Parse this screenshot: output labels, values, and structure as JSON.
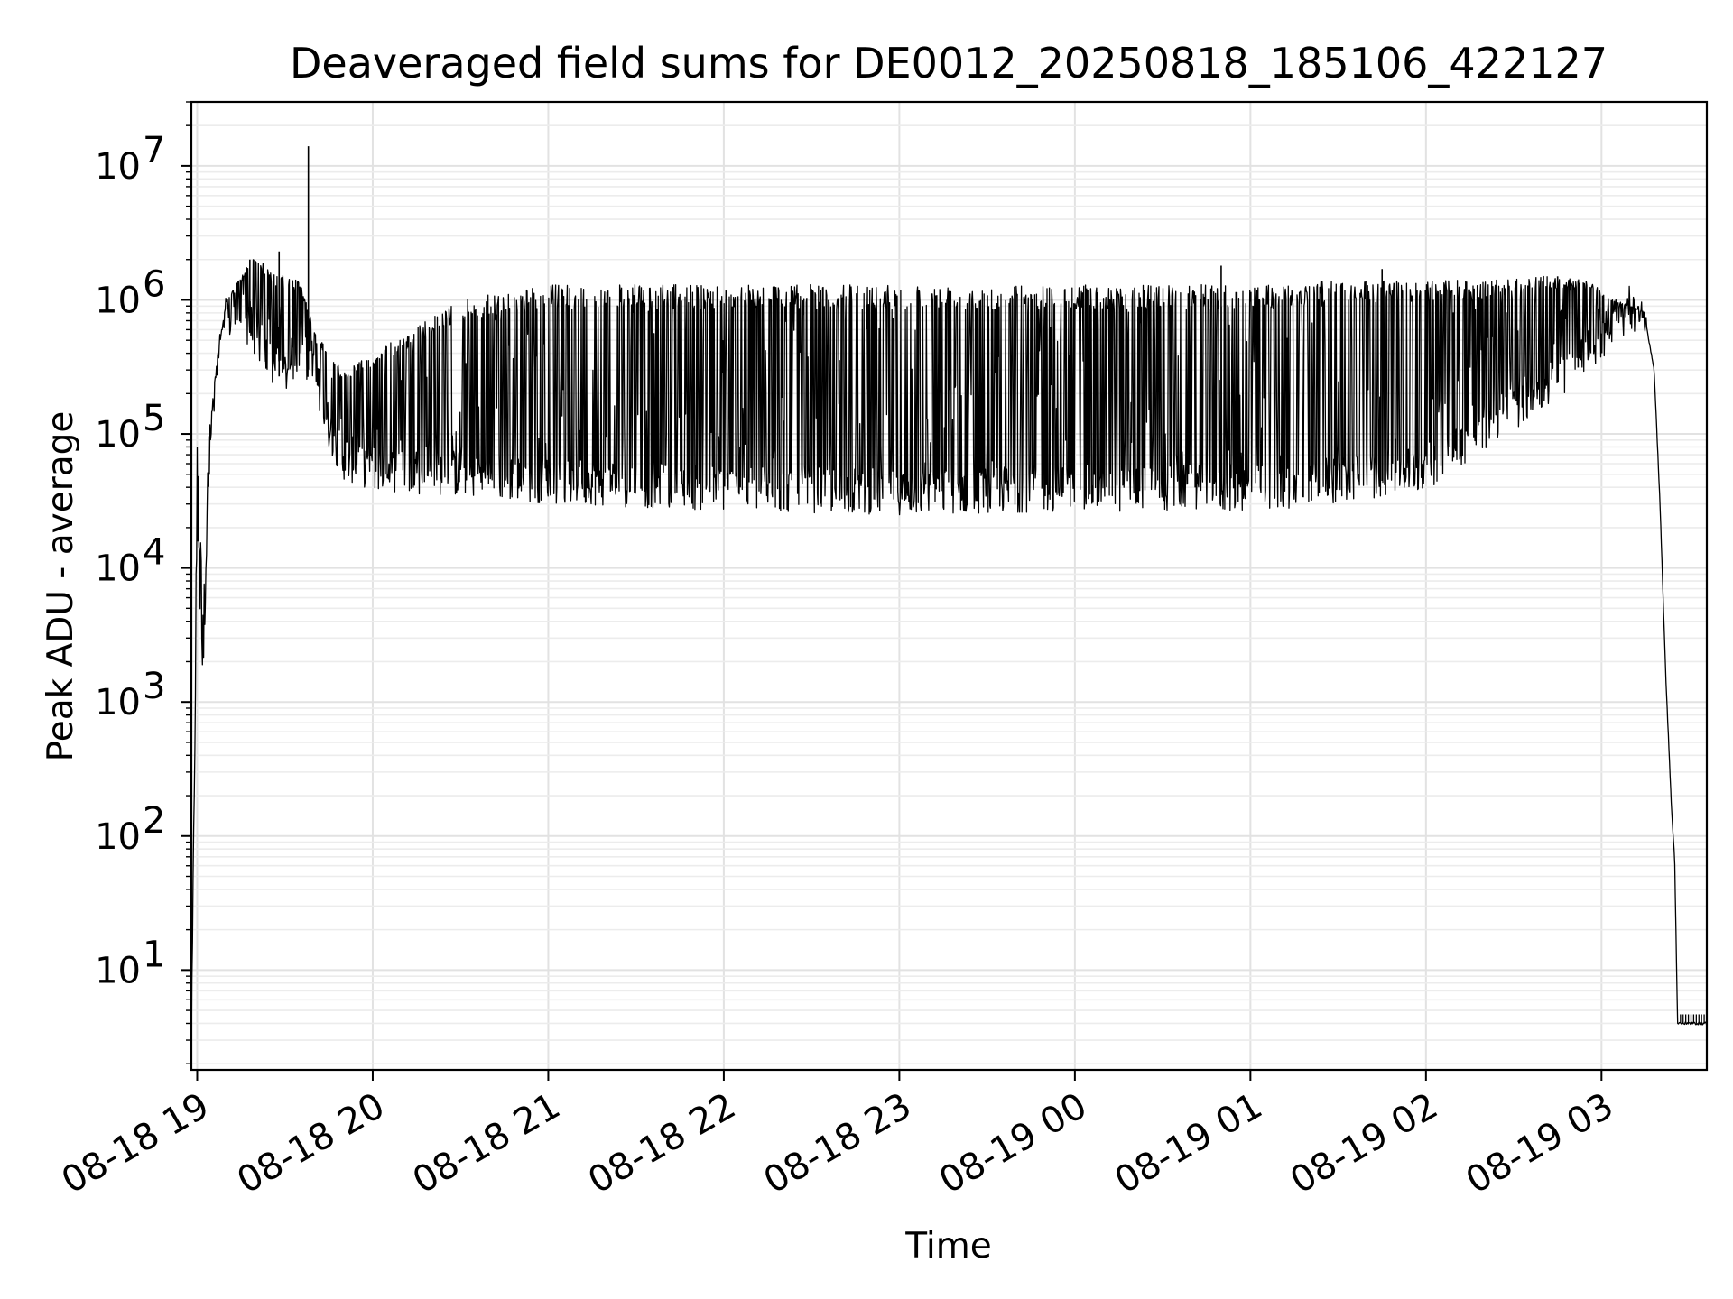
{
  "chart_data": {
    "type": "line",
    "title": "Deaveraged field sums for DE0012_20250818_185106_422127",
    "xlabel": "Time",
    "ylabel": "Peak ADU - average",
    "yscale": "log",
    "ylim": [
      1.8,
      30000000
    ],
    "xlim": [
      "08-18 18:58",
      "08-19 03:36"
    ],
    "grid": true,
    "legend": "none",
    "line_color": "#000000",
    "x_ticks": [
      "08-18 19",
      "08-18 20",
      "08-18 21",
      "08-18 22",
      "08-18 23",
      "08-19 00",
      "08-19 01",
      "08-19 02",
      "08-19 03"
    ],
    "y_ticks": [
      {
        "base": "10",
        "exp": "1",
        "value": 10
      },
      {
        "base": "10",
        "exp": "2",
        "value": 100
      },
      {
        "base": "10",
        "exp": "3",
        "value": 1000
      },
      {
        "base": "10",
        "exp": "4",
        "value": 10000
      },
      {
        "base": "10",
        "exp": "5",
        "value": 100000
      },
      {
        "base": "10",
        "exp": "6",
        "value": 1000000
      },
      {
        "base": "10",
        "exp": "7",
        "value": 10000000
      }
    ],
    "series": [
      {
        "baseline_x": [
          "08-18 18:58",
          "08-18 19:00",
          "08-18 19:02",
          "08-18 19:04",
          "08-18 19:07",
          "08-18 19:10",
          "08-18 19:15",
          "08-18 19:20",
          "08-18 19:25",
          "08-18 19:30",
          "08-18 19:35",
          "08-18 19:40",
          "08-18 19:45",
          "08-18 19:50",
          "08-18 20:00",
          "08-18 20:30",
          "08-18 21:00",
          "08-18 22:00",
          "08-18 23:00",
          "08-19 00:00",
          "08-19 01:00",
          "08-19 01:30",
          "08-19 02:00",
          "08-19 02:20",
          "08-19 02:40",
          "08-19 02:55",
          "08-19 03:05",
          "08-19 03:10",
          "08-19 03:15",
          "08-19 03:18",
          "08-19 03:20",
          "08-19 03:22",
          "08-19 03:24",
          "08-19 03:25",
          "08-19 03:26",
          "08-19 03:27",
          "08-19 03:36"
        ],
        "baseline_y": [
          2,
          20000,
          1600,
          60000,
          300000,
          650000,
          700000,
          500000,
          300000,
          250000,
          400000,
          250000,
          100000,
          60000,
          50000,
          45000,
          40000,
          35000,
          33000,
          35000,
          35000,
          40000,
          50000,
          100000,
          200000,
          350000,
          600000,
          800000,
          700000,
          300000,
          30000,
          1500,
          150,
          70,
          4,
          4,
          4
        ],
        "upper_envelope_y": [
          2,
          90000,
          5000,
          100000,
          400000,
          1000000,
          1500000,
          2300000,
          1600000,
          1500000,
          1400000,
          600000,
          400000,
          300000,
          400000,
          1000000,
          1300000,
          1300000,
          1300000,
          1300000,
          1300000,
          1400000,
          1400000,
          1400000,
          1500000,
          1400000,
          1000000,
          900000,
          800000,
          300000,
          30000,
          1500,
          150,
          70,
          4,
          4,
          4
        ],
        "spikes": [
          {
            "x": "08-18 19:38",
            "y": 14000000
          },
          {
            "x": "08-18 19:18",
            "y": 2000000
          },
          {
            "x": "08-18 19:28",
            "y": 2300000
          },
          {
            "x": "08-19 00:50",
            "y": 1800000
          },
          {
            "x": "08-19 01:45",
            "y": 1700000
          },
          {
            "x": "08-19 02:45",
            "y": 1500000
          },
          {
            "x": "08-19 02:52",
            "y": 1400000
          }
        ]
      }
    ]
  }
}
